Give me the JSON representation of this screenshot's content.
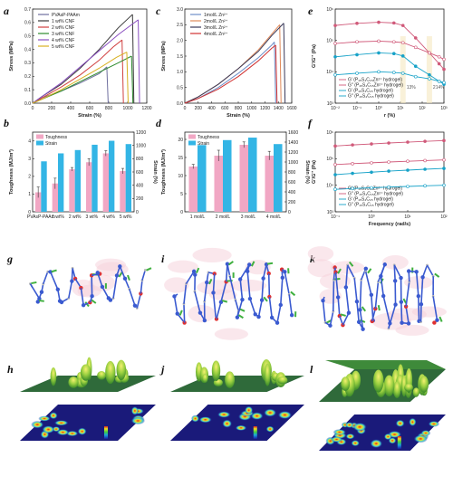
{
  "panel_labels": {
    "a": "a",
    "b": "b",
    "c": "c",
    "d": "d",
    "e": "e",
    "f": "f",
    "g": "g",
    "h": "h",
    "i": "i",
    "j": "j",
    "k": "k",
    "l": "l"
  },
  "chart_data": [
    {
      "id": "a",
      "type": "line",
      "xlabel": "Strain (%)",
      "ylabel": "Stress (MPa)",
      "xlim": [
        0,
        1200
      ],
      "ylim": [
        0,
        0.7
      ],
      "xticks": [
        0,
        200,
        400,
        600,
        800,
        1000,
        1200
      ],
      "yticks": [
        0.0,
        0.1,
        0.2,
        0.3,
        0.4,
        0.5,
        0.6,
        0.7
      ],
      "series": [
        {
          "name": "PVAsP-PAAm",
          "color": "#6e6e9e",
          "x": [
            0,
            100,
            300,
            500,
            700,
            780
          ],
          "y": [
            0,
            0.04,
            0.09,
            0.15,
            0.22,
            0.27
          ]
        },
        {
          "name": "1 wt% CNF",
          "color": "#3a3a3a",
          "x": [
            0,
            100,
            300,
            500,
            700,
            900,
            1050
          ],
          "y": [
            0,
            0.05,
            0.14,
            0.26,
            0.4,
            0.56,
            0.66
          ]
        },
        {
          "name": "2 wt% CNF",
          "color": "#d04040",
          "x": [
            0,
            100,
            300,
            500,
            700,
            850,
            940
          ],
          "y": [
            0,
            0.04,
            0.12,
            0.21,
            0.32,
            0.42,
            0.47
          ]
        },
        {
          "name": "3 wt% CNF",
          "color": "#2e8b2e",
          "x": [
            0,
            100,
            300,
            500,
            700,
            900,
            1040
          ],
          "y": [
            0,
            0.03,
            0.09,
            0.16,
            0.23,
            0.3,
            0.35
          ]
        },
        {
          "name": "4 wt% CNF",
          "color": "#8a4fc0",
          "x": [
            0,
            100,
            300,
            500,
            700,
            900,
            1110
          ],
          "y": [
            0,
            0.05,
            0.15,
            0.27,
            0.39,
            0.51,
            0.62
          ]
        },
        {
          "name": "5 wt% CNF",
          "color": "#d8b020",
          "x": [
            0,
            100,
            300,
            500,
            700,
            880,
            990
          ],
          "y": [
            0,
            0.03,
            0.1,
            0.18,
            0.26,
            0.34,
            0.38
          ]
        }
      ]
    },
    {
      "id": "b",
      "type": "bar",
      "ylabel": "Toughness (MJ/m³)",
      "y2label": "Strain (%)",
      "categories": [
        "PVAsP-PAAm",
        "1 wt%",
        "2 wt%",
        "3 wt%",
        "4 wt%",
        "5 wt%"
      ],
      "ylim": [
        0,
        4.5
      ],
      "yticks": [
        0,
        1,
        2,
        3,
        4
      ],
      "y2lim": [
        0,
        1200
      ],
      "y2ticks": [
        0,
        200,
        400,
        600,
        800,
        1000,
        1200
      ],
      "series": [
        {
          "name": "Toughness",
          "color": "#f1a7c4",
          "axis": "left",
          "values": [
            1.1,
            1.6,
            2.4,
            2.8,
            3.3,
            2.3
          ],
          "errors": [
            0.3,
            0.3,
            0.1,
            0.2,
            0.15,
            0.15
          ]
        },
        {
          "name": "Strain",
          "color": "#33b5e5",
          "axis": "right",
          "values": [
            760,
            880,
            930,
            1010,
            1070,
            1020
          ],
          "errors": [
            0,
            0,
            0,
            0,
            0,
            0
          ]
        }
      ]
    },
    {
      "id": "c",
      "type": "line",
      "xlabel": "Strain (%)",
      "ylabel": "Stress (MPa)",
      "xlim": [
        0,
        1600
      ],
      "ylim": [
        0,
        3.0
      ],
      "xticks": [
        0,
        200,
        400,
        600,
        800,
        1000,
        1200,
        1400,
        1600
      ],
      "yticks": [
        0.0,
        0.5,
        1.0,
        1.5,
        2.0,
        2.5,
        3.0
      ],
      "series": [
        {
          "name": "1mol/L Zn²⁺",
          "color": "#6e8ec8",
          "x": [
            0,
            200,
            500,
            800,
            1100,
            1300,
            1340
          ],
          "y": [
            0,
            0.15,
            0.5,
            0.95,
            1.45,
            1.85,
            1.95
          ]
        },
        {
          "name": "2mol/L Zn²⁺",
          "color": "#e08a5a",
          "x": [
            0,
            200,
            500,
            800,
            1100,
            1300,
            1420
          ],
          "y": [
            0,
            0.2,
            0.6,
            1.1,
            1.7,
            2.2,
            2.5
          ]
        },
        {
          "name": "3mol/L Zn²⁺",
          "color": "#3a3a5a",
          "x": [
            0,
            200,
            500,
            800,
            1100,
            1300,
            1480
          ],
          "y": [
            0,
            0.2,
            0.6,
            1.1,
            1.65,
            2.15,
            2.55
          ]
        },
        {
          "name": "4mol/L Zn²⁺",
          "color": "#d03030",
          "x": [
            0,
            200,
            500,
            800,
            1100,
            1300,
            1360
          ],
          "y": [
            0,
            0.15,
            0.45,
            0.85,
            1.35,
            1.75,
            1.85
          ]
        }
      ]
    },
    {
      "id": "d",
      "type": "bar",
      "ylabel": "Toughness (MJ/m³)",
      "y2label": "Strain (%)",
      "categories": [
        "1 mol/L",
        "2 mol/L",
        "3 mol/L",
        "4 mol/L"
      ],
      "ylim": [
        0,
        22
      ],
      "yticks": [
        0,
        5,
        10,
        15,
        20
      ],
      "y2lim": [
        0,
        1600
      ],
      "y2ticks": [
        0,
        200,
        400,
        600,
        800,
        1000,
        1200,
        1400,
        1600
      ],
      "series": [
        {
          "name": "Toughness",
          "color": "#f1a7c4",
          "axis": "left",
          "values": [
            12.5,
            15.5,
            18.5,
            15.5
          ],
          "errors": [
            0.6,
            1.5,
            0.8,
            1.2
          ]
        },
        {
          "name": "Strain",
          "color": "#33b5e5",
          "axis": "right",
          "values": [
            1340,
            1440,
            1490,
            1360
          ],
          "errors": [
            0,
            0,
            0,
            0
          ]
        }
      ]
    },
    {
      "id": "e",
      "type": "line",
      "xlabel": "r (%)",
      "ylabel": "G'/G'' (Pa)",
      "xscale": "log",
      "yscale": "log",
      "xlim": [
        0.01,
        1000
      ],
      "ylim": [
        1000,
        1000000
      ],
      "xticks": [
        "10⁻²",
        "10⁻¹",
        "10⁰",
        "10¹",
        "10²",
        "10³"
      ],
      "yticks": [
        "10³",
        "10⁴",
        "10⁵",
        "10⁶"
      ],
      "annotations": [
        "13%",
        "214%"
      ],
      "series": [
        {
          "name": "G' (P₁₅S₄C₁₅Zn²⁺ hydrogel)",
          "color": "#d05a7a",
          "marker": "filled",
          "x": [
            0.01,
            0.1,
            1,
            5,
            13,
            50,
            214,
            600,
            1000
          ],
          "y": [
            300000,
            350000,
            380000,
            360000,
            300000,
            120000,
            40000,
            18000,
            12000
          ]
        },
        {
          "name": "G'' (P₁₅S₄C₁₅Zn²⁺ hydrogel)",
          "color": "#d05a7a",
          "marker": "open",
          "x": [
            0.01,
            0.1,
            1,
            5,
            13,
            50,
            214,
            600,
            1000
          ],
          "y": [
            80000,
            90000,
            95000,
            90000,
            85000,
            60000,
            40000,
            30000,
            25000
          ]
        },
        {
          "name": "G' (P₁₅S₄C₁₅ hydrogel)",
          "color": "#17a2c8",
          "marker": "filled",
          "x": [
            0.01,
            0.1,
            1,
            5,
            13,
            50,
            214,
            600,
            1000
          ],
          "y": [
            30000,
            35000,
            40000,
            38000,
            32000,
            15000,
            8000,
            5000,
            4000
          ]
        },
        {
          "name": "G'' (P₁₅S₄C₁₅ hydrogel)",
          "color": "#17a2c8",
          "marker": "open",
          "x": [
            0.01,
            0.1,
            1,
            5,
            13,
            50,
            214,
            600,
            1000
          ],
          "y": [
            8000,
            9000,
            10000,
            9500,
            9000,
            7000,
            6000,
            5000,
            4500
          ]
        }
      ]
    },
    {
      "id": "f",
      "type": "line",
      "xlabel": "Frequency (rad/s)",
      "ylabel": "G'/G'' (Pa)",
      "xscale": "log",
      "yscale": "log",
      "xlim": [
        0.1,
        100
      ],
      "ylim": [
        1000,
        1000000
      ],
      "xticks": [
        "10⁻¹",
        "10⁰",
        "10¹",
        "10²"
      ],
      "yticks": [
        "10³",
        "10⁴",
        "10⁵",
        "10⁶"
      ],
      "series": [
        {
          "name": "G' (P₁₅S₄C₁₅Zn²⁺ hydrogel)",
          "color": "#d05a7a",
          "marker": "filled",
          "x": [
            0.1,
            0.3,
            1,
            3,
            10,
            30,
            100
          ],
          "y": [
            300000,
            330000,
            360000,
            390000,
            420000,
            450000,
            480000
          ]
        },
        {
          "name": "G'' (P₁₅S₄C₁₅Zn²⁺ hydrogel)",
          "color": "#d05a7a",
          "marker": "open",
          "x": [
            0.1,
            0.3,
            1,
            3,
            10,
            30,
            100
          ],
          "y": [
            60000,
            65000,
            70000,
            75000,
            80000,
            85000,
            90000
          ]
        },
        {
          "name": "G' (P₁₅S₄C₁₅ hydrogel)",
          "color": "#17a2c8",
          "marker": "filled",
          "x": [
            0.1,
            0.3,
            1,
            3,
            10,
            30,
            100
          ],
          "y": [
            25000,
            28000,
            31000,
            34000,
            37000,
            40000,
            43000
          ]
        },
        {
          "name": "G'' (P₁₅S₄C₁₅ hydrogel)",
          "color": "#17a2c8",
          "marker": "open",
          "x": [
            0.1,
            0.3,
            1,
            3,
            10,
            30,
            100
          ],
          "y": [
            7000,
            7500,
            8000,
            8500,
            9000,
            9500,
            10000
          ]
        }
      ]
    }
  ]
}
